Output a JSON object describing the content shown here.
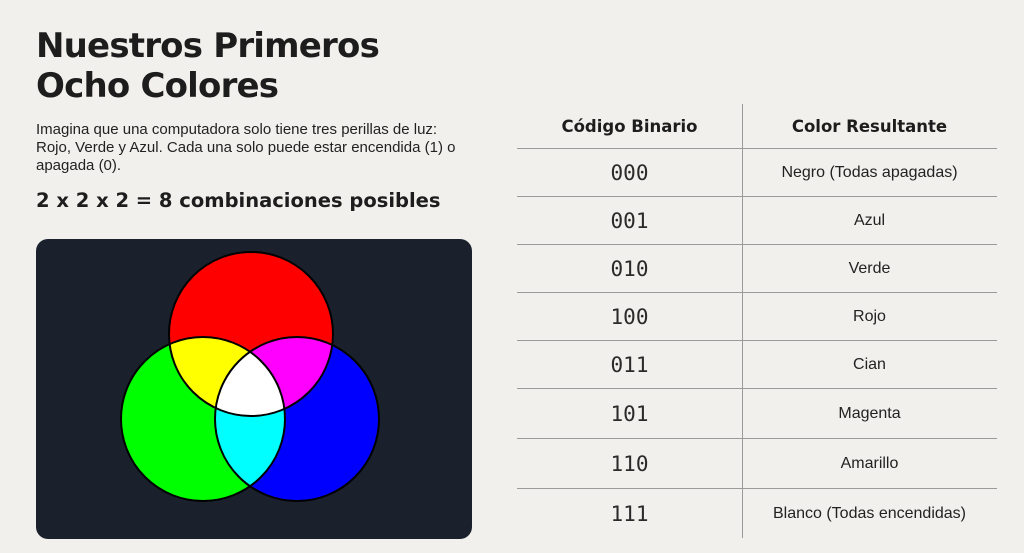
{
  "title": {
    "line1": "Nuestros Primeros",
    "line2": "Ocho Colores"
  },
  "description": "Imagina que una computadora solo tiene tres perillas de luz: Rojo, Verde y Azul. Cada una solo puede estar encendida (1) o apagada (0).",
  "formula": "2 x 2 x 2 = 8 combinaciones posibles",
  "venn": {
    "background": "#1a212d",
    "colors": {
      "red": "#ff0000",
      "green": "#00ff00",
      "blue": "#0000ff",
      "yellow": "#ffff00",
      "magenta": "#ff00ff",
      "cyan": "#00ffff",
      "white": "#ffffff"
    }
  },
  "table": {
    "headers": [
      "Código Binario",
      "Color Resultante"
    ],
    "rows": [
      {
        "code": "000",
        "color": "Negro (Todas apagadas)"
      },
      {
        "code": "001",
        "color": "Azul"
      },
      {
        "code": "010",
        "color": "Verde"
      },
      {
        "code": "100",
        "color": "Rojo"
      },
      {
        "code": "011",
        "color": "Cian"
      },
      {
        "code": "101",
        "color": "Magenta"
      },
      {
        "code": "110",
        "color": "Amarillo"
      },
      {
        "code": "111",
        "color": "Blanco (Todas encendidas)"
      }
    ]
  }
}
